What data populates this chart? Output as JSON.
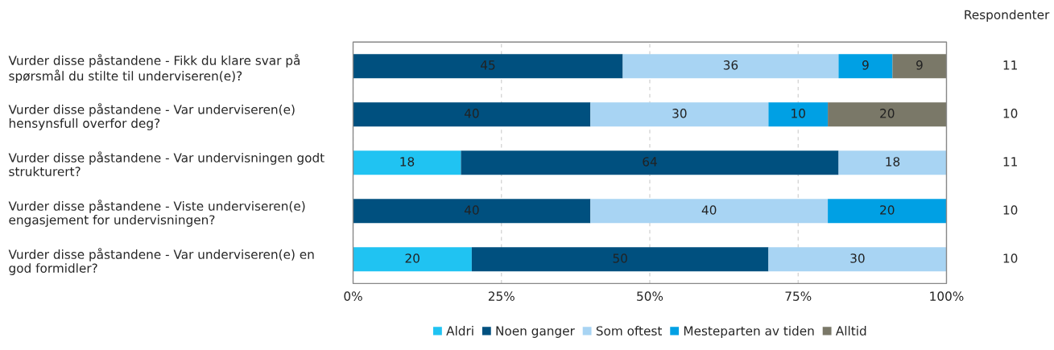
{
  "chart_data": {
    "type": "bar",
    "orientation": "horizontal",
    "stacked": true,
    "categories": [
      "Vurder disse påstandene - Fikk du klare svar på\nspørsmål du stilte til underviseren(e)?",
      "Vurder disse påstandene - Var underviseren(e)\nhensynsfull overfor deg?",
      "Vurder disse påstandene - Var undervisningen godt\nstrukturert?",
      "Vurder disse påstandene - Viste underviseren(e)\nengasjement for undervisningen?",
      "Vurder disse påstandene - Var underviseren(e) en\ngod formidler?"
    ],
    "series": [
      {
        "name": "Aldri",
        "color": "#20c3f2",
        "values": [
          null,
          null,
          18.18,
          null,
          20
        ],
        "value_labels": [
          null,
          null,
          "18",
          null,
          "20"
        ]
      },
      {
        "name": "Noen ganger",
        "color": "#00507f",
        "values": [
          45.45,
          40,
          63.64,
          40,
          50
        ],
        "value_labels": [
          "45",
          "40",
          "64",
          "40",
          "50"
        ]
      },
      {
        "name": "Som oftest",
        "color": "#a8d4f3",
        "values": [
          36.36,
          30,
          18.18,
          40,
          30
        ],
        "value_labels": [
          "36",
          "30",
          "18",
          "40",
          "30"
        ]
      },
      {
        "name": "Mesteparten av tiden",
        "color": "#00a0e4",
        "values": [
          9.09,
          10,
          null,
          20,
          null
        ],
        "value_labels": [
          "9",
          "10",
          null,
          "20",
          null
        ]
      },
      {
        "name": "Alltid",
        "color": "#7a7868",
        "values": [
          9.09,
          20,
          null,
          null,
          null
        ],
        "value_labels": [
          "9",
          "20",
          null,
          null,
          null
        ]
      }
    ],
    "xlim": [
      0,
      100
    ],
    "xticks": [
      {
        "value": 0,
        "label": "0%"
      },
      {
        "value": 25,
        "label": "25%"
      },
      {
        "value": 50,
        "label": "50%"
      },
      {
        "value": 75,
        "label": "75%"
      },
      {
        "value": 100,
        "label": "100%"
      }
    ],
    "grid": "x",
    "legend": "bottom",
    "annotations": [
      "Respondenter",
      "11",
      "10",
      "11",
      "10",
      "10"
    ]
  }
}
